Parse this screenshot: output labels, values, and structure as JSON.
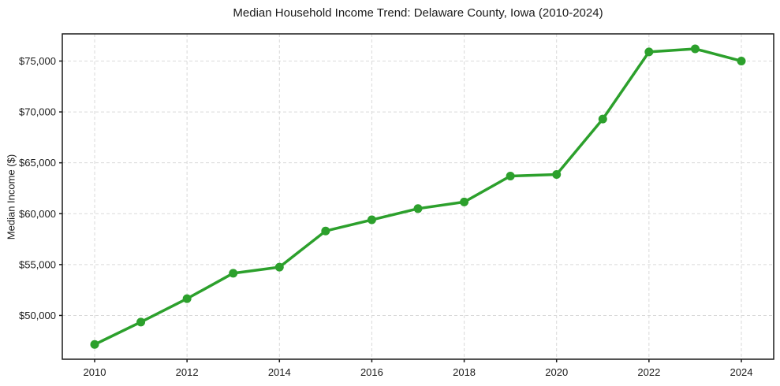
{
  "chart_data": {
    "type": "line",
    "title": "Median Household Income Trend: Delaware County, Iowa (2010-2024)",
    "xlabel": "",
    "ylabel": "Median Income ($)",
    "x": [
      2010,
      2011,
      2012,
      2013,
      2014,
      2015,
      2016,
      2017,
      2018,
      2019,
      2020,
      2021,
      2022,
      2023,
      2024
    ],
    "values": [
      47150,
      49350,
      51650,
      54150,
      54750,
      58300,
      59400,
      60500,
      61150,
      63700,
      63850,
      69300,
      75900,
      76200,
      75000
    ],
    "xlim": [
      2009.3,
      2024.7
    ],
    "ylim": [
      45700,
      77670
    ],
    "x_ticks": [
      2010,
      2012,
      2014,
      2016,
      2018,
      2020,
      2022,
      2024
    ],
    "x_tick_labels": [
      "2010",
      "2012",
      "2014",
      "2016",
      "2018",
      "2020",
      "2022",
      "2024"
    ],
    "y_ticks": [
      50000,
      55000,
      60000,
      65000,
      70000,
      75000
    ],
    "y_tick_labels": [
      "$50,000",
      "$55,000",
      "$60,000",
      "$65,000",
      "$70,000",
      "$75,000"
    ],
    "grid": true,
    "grid_style": "dashed",
    "legend": "none",
    "colors": {
      "line": "#2ca02c",
      "marker": "#2ca02c",
      "grid": "#d9d9d9",
      "spine": "#1a1a1a",
      "background": "#ffffff"
    }
  }
}
